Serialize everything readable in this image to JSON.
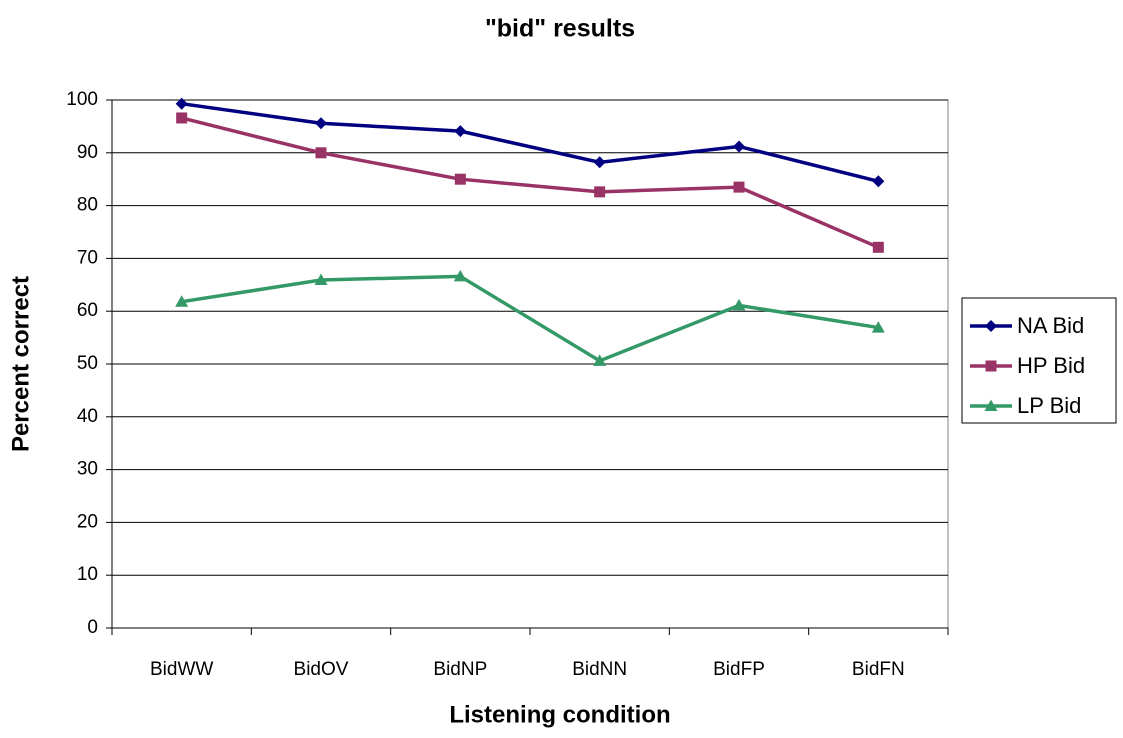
{
  "chart_data": {
    "type": "line",
    "title": "\"bid\" results",
    "x_label": "Listening condition",
    "y_label": "Percent correct",
    "categories": [
      "BidWW",
      "BidOV",
      "BidNP",
      "BidNN",
      "BidFP",
      "BidFN"
    ],
    "series": [
      {
        "name": "NA Bid",
        "color": "#000080",
        "marker": "diamond",
        "values": [
          99.3,
          95.6,
          94.1,
          88.2,
          91.2,
          84.6
        ]
      },
      {
        "name": "HP Bid",
        "color": "#993366",
        "marker": "square",
        "values": [
          96.6,
          90,
          85,
          82.6,
          83.5,
          72.1
        ]
      },
      {
        "name": "LP Bid",
        "color": "#339966",
        "marker": "triangle",
        "values": [
          61.8,
          65.9,
          66.6,
          50.6,
          61.1,
          56.9
        ]
      }
    ],
    "ylim": [
      0,
      100
    ],
    "yticks": [
      0,
      10,
      20,
      30,
      40,
      50,
      60,
      70,
      80,
      90,
      100
    ],
    "grid": true,
    "legend": "right"
  }
}
